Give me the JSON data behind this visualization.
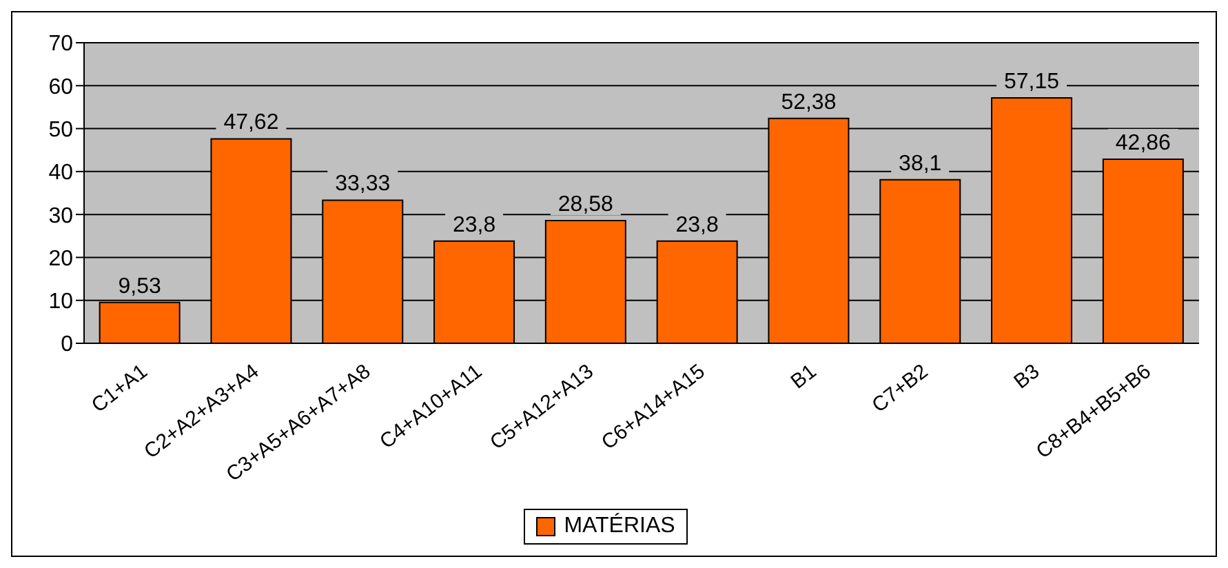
{
  "chart_data": {
    "type": "bar",
    "categories": [
      "C1+A1",
      "C2+A2+A3+A4",
      "C3+A5+A6+A7+A8",
      "C4+A10+A11",
      "C5+A12+A13",
      "C6+A14+A15",
      "B1",
      "C7+B2",
      "B3",
      "C8+B4+B5+B6"
    ],
    "series": [
      {
        "name": "MATÉRIAS",
        "color": "#ff6600",
        "values": [
          9.53,
          47.62,
          33.33,
          23.8,
          28.58,
          23.8,
          52.38,
          38.1,
          57.15,
          42.86
        ],
        "value_labels": [
          "9,53",
          "47,62",
          "33,33",
          "23,8",
          "28,58",
          "23,8",
          "52,38",
          "38,1",
          "57,15",
          "42,86"
        ]
      }
    ],
    "ylim": [
      0,
      70
    ],
    "yticks": [
      0,
      10,
      20,
      30,
      40,
      50,
      60,
      70
    ],
    "grid": "y",
    "legend": "bottom"
  }
}
